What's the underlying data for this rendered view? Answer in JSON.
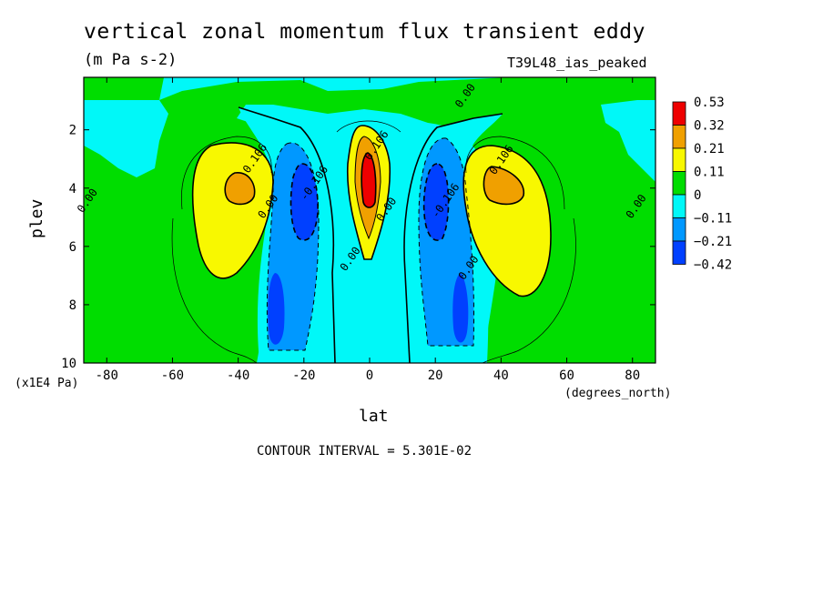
{
  "chart_data": {
    "type": "contour",
    "title": "vertical zonal momentum flux transient eddy",
    "units": "(m Pa s-2)",
    "run_label": "T39L48_ias_peaked",
    "xlabel": "lat",
    "ylabel": "plev",
    "x_unit_label": "(degrees_north)",
    "y_unit_label": "(x1E4 Pa)",
    "contour_interval_label": "CONTOUR INTERVAL = 5.301E-02",
    "xlim": [
      -87,
      87
    ],
    "ylim": [
      10,
      0.2
    ],
    "x_ticks": [
      -80,
      -60,
      -40,
      -20,
      0,
      20,
      40,
      60,
      80
    ],
    "y_ticks": [
      2,
      4,
      6,
      8,
      10
    ],
    "legend": {
      "position": "right",
      "levels": [
        0.53,
        0.32,
        0.21,
        0.11,
        0,
        -0.11,
        -0.21,
        -0.42
      ],
      "colors": [
        "#ee0000",
        "#f0a000",
        "#f8f800",
        "#00dd00",
        "#00f8f8",
        "#0098ff",
        "#0040ff"
      ]
    },
    "contour_labels": [
      {
        "text": "0.00",
        "x": 30,
        "y": 0.9
      },
      {
        "text": "0.106",
        "x": -34,
        "y": 3.05
      },
      {
        "text": "0.106",
        "x": 3,
        "y": 2.6
      },
      {
        "text": "0.106",
        "x": 41,
        "y": 3.1
      },
      {
        "text": "0.00",
        "x": -85,
        "y": 4.5
      },
      {
        "text": "0.00",
        "x": -30,
        "y": 4.7
      },
      {
        "text": "-0.106",
        "x": -16,
        "y": 3.9
      },
      {
        "text": "0.00",
        "x": 6,
        "y": 4.8
      },
      {
        "text": "-0.106",
        "x": 24,
        "y": 4.5
      },
      {
        "text": "0.00",
        "x": 82,
        "y": 4.7
      },
      {
        "text": "0.00",
        "x": -5,
        "y": 6.5
      },
      {
        "text": "0.00",
        "x": 31,
        "y": 6.8
      }
    ]
  }
}
